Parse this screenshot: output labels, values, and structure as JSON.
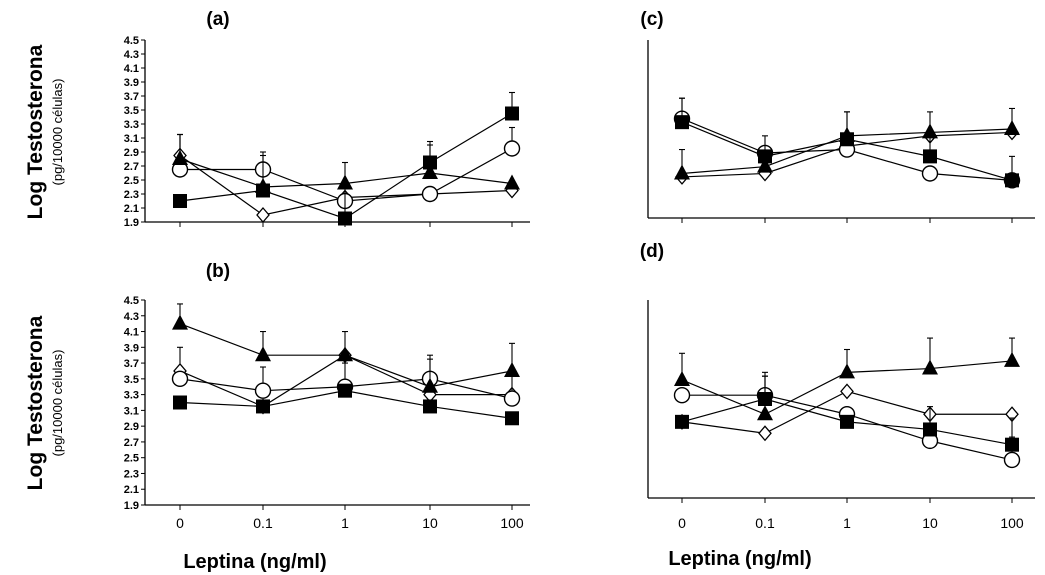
{
  "chart_data": [
    {
      "type": "line",
      "title": "(a)",
      "ylabel": "Log Testosterona",
      "ylabel_sub": "(pg/10000 células)",
      "x": [
        "0",
        "0.1",
        "1",
        "10",
        "100"
      ],
      "ylim": [
        1.9,
        4.5
      ],
      "yticks": [
        "1.9",
        "2.1",
        "2.3",
        "2.5",
        "2.7",
        "2.9",
        "3.1",
        "3.3",
        "3.5",
        "3.7",
        "3.9",
        "4.1",
        "4.3",
        "4.5"
      ],
      "series": [
        {
          "marker": "diamond",
          "values": [
            2.85,
            2.0,
            2.25,
            2.3,
            2.35
          ],
          "errors": [
            0.3,
            0.0,
            0.0,
            0.0,
            0.0
          ]
        },
        {
          "marker": "circle",
          "values": [
            2.65,
            2.65,
            2.2,
            2.3,
            2.95
          ],
          "errors": [
            0.5,
            0.25,
            0.0,
            0.0,
            0.3
          ]
        },
        {
          "marker": "triangle",
          "values": [
            2.8,
            2.4,
            2.45,
            2.6,
            2.45
          ],
          "errors": [
            0.35,
            0.0,
            0.3,
            0.4,
            0.0
          ]
        },
        {
          "marker": "square",
          "values": [
            2.2,
            2.35,
            1.95,
            2.75,
            3.45
          ],
          "errors": [
            0.0,
            0.5,
            0.5,
            0.3,
            0.3
          ]
        }
      ]
    },
    {
      "type": "line",
      "title": "(b)",
      "ylabel": "Log Testosterona",
      "ylabel_sub": "(pg/10000 células)",
      "xlabel": "Leptina (ng/ml)",
      "x": [
        "0",
        "0.1",
        "1",
        "10",
        "100"
      ],
      "ylim": [
        1.9,
        4.5
      ],
      "yticks": [
        "1.9",
        "2.1",
        "2.3",
        "2.5",
        "2.7",
        "2.9",
        "3.1",
        "3.3",
        "3.5",
        "3.7",
        "3.9",
        "4.1",
        "4.3",
        "4.5"
      ],
      "series": [
        {
          "marker": "diamond",
          "values": [
            3.6,
            3.15,
            3.8,
            3.3,
            3.3
          ],
          "errors": [
            0.3,
            0.0,
            0.0,
            0.0,
            0.0
          ]
        },
        {
          "marker": "circle",
          "values": [
            3.5,
            3.35,
            3.4,
            3.5,
            3.25
          ],
          "errors": [
            0.0,
            0.3,
            0.3,
            0.25,
            0.3
          ]
        },
        {
          "marker": "triangle",
          "values": [
            4.2,
            3.8,
            3.8,
            3.4,
            3.6
          ],
          "errors": [
            0.25,
            0.3,
            0.3,
            0.4,
            0.35
          ]
        },
        {
          "marker": "square",
          "values": [
            3.2,
            3.15,
            3.35,
            3.15,
            3.0
          ],
          "errors": [
            0.0,
            0.0,
            0.0,
            0.0,
            0.0
          ]
        }
      ]
    },
    {
      "type": "line",
      "title": "(c)",
      "x": [
        "0",
        "0.1",
        "1",
        "10",
        "100"
      ],
      "ylim": [
        1.9,
        4.5
      ],
      "series": [
        {
          "marker": "diamond",
          "values": [
            2.5,
            2.55,
            2.95,
            3.1,
            3.15
          ],
          "errors": [
            0.0,
            0.0,
            0.0,
            0.0,
            0.0
          ]
        },
        {
          "marker": "circle",
          "values": [
            3.35,
            2.85,
            2.9,
            2.55,
            2.45
          ],
          "errors": [
            0.3,
            0.0,
            0.0,
            0.0,
            0.0
          ]
        },
        {
          "marker": "triangle",
          "values": [
            2.55,
            2.65,
            3.1,
            3.15,
            3.2
          ],
          "errors": [
            0.35,
            0.0,
            0.35,
            0.3,
            0.3
          ]
        },
        {
          "marker": "square",
          "values": [
            3.3,
            2.8,
            3.05,
            2.8,
            2.45
          ],
          "errors": [
            0.35,
            0.3,
            0.4,
            0.3,
            0.35
          ]
        }
      ]
    },
    {
      "type": "line",
      "title": "(d)",
      "xlabel": "Leptina (ng/ml)",
      "x": [
        "0",
        "0.1",
        "1",
        "10",
        "100"
      ],
      "ylim": [
        1.9,
        4.5
      ],
      "series": [
        {
          "marker": "diamond",
          "values": [
            2.9,
            2.75,
            3.3,
            3.0,
            3.0
          ],
          "errors": [
            0.0,
            0.0,
            0.0,
            0.0,
            0.0
          ]
        },
        {
          "marker": "circle",
          "values": [
            3.25,
            3.25,
            3.0,
            2.65,
            2.4
          ],
          "errors": [
            0.0,
            0.3,
            0.0,
            0.0,
            0.3
          ]
        },
        {
          "marker": "triangle",
          "values": [
            3.45,
            3.0,
            3.55,
            3.6,
            3.7
          ],
          "errors": [
            0.35,
            0.5,
            0.3,
            0.4,
            0.3
          ]
        },
        {
          "marker": "square",
          "values": [
            2.9,
            3.2,
            2.9,
            2.8,
            2.6
          ],
          "errors": [
            0.0,
            0.3,
            0.0,
            0.3,
            0.35
          ]
        }
      ]
    }
  ]
}
